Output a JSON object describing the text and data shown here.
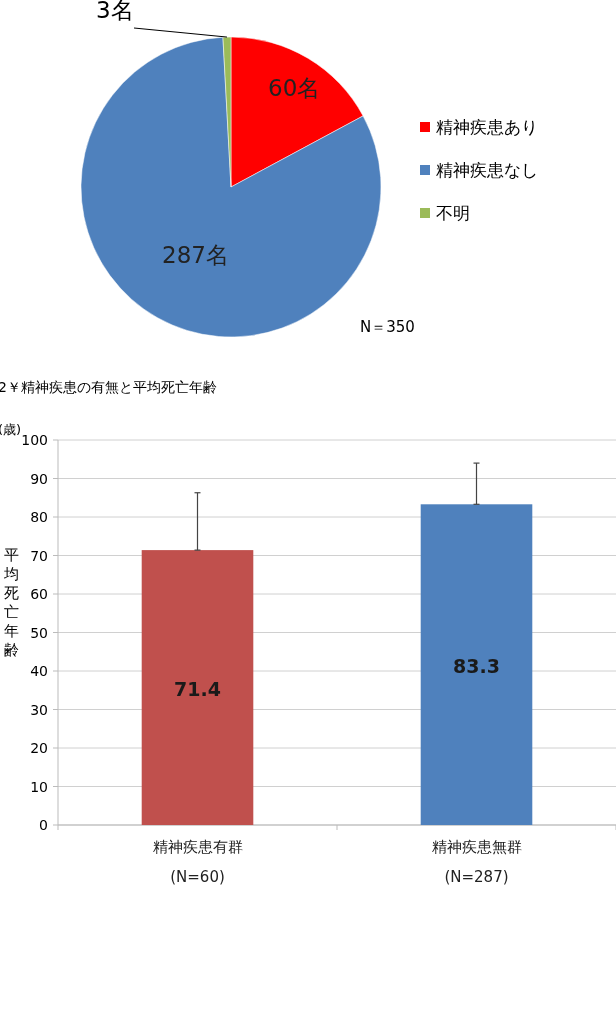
{
  "chart_data": [
    {
      "type": "pie",
      "categories": [
        "精神疾患あり",
        "精神疾患なし",
        "不明"
      ],
      "values": [
        60,
        287,
        3
      ],
      "colors": [
        "#ff0000",
        "#4f81bd",
        "#9bbb59"
      ],
      "value_labels": [
        "60名",
        "287名",
        "3名"
      ],
      "legend": "right",
      "annotations": [
        "N＝350"
      ]
    },
    {
      "type": "bar",
      "title": "2￥精神疾患の有無と平均死亡年齢",
      "ylabel": "平均死亡年齢",
      "annotations": [
        "(歳)"
      ],
      "categories": [
        "精神疾患有群\n(N=60)",
        "精神疾患無群\n(N=287)"
      ],
      "values": [
        71.4,
        83.3
      ],
      "colors": [
        "#c0504d",
        "#4f81bd"
      ],
      "errors": [
        [
          71.4,
          86.3
        ],
        [
          83.3,
          94
        ]
      ],
      "data_labels": true,
      "ylim": [
        0,
        100
      ],
      "yticks": [
        0,
        10,
        20,
        30,
        40,
        50,
        60,
        70,
        80,
        90,
        100
      ],
      "grid": "y"
    }
  ]
}
